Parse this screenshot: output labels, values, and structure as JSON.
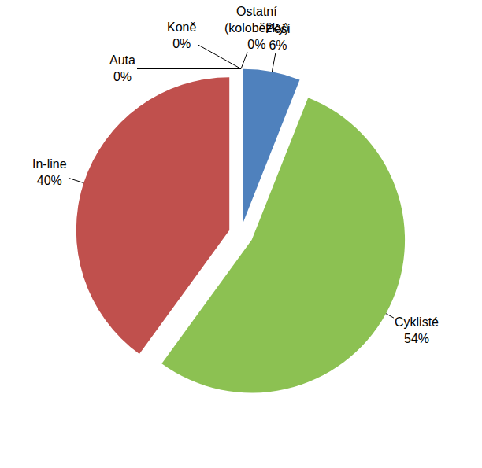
{
  "chart_data": {
    "type": "pie",
    "categories": [
      "Pěší",
      "Cyklisté",
      "In-line",
      "Auta",
      "Koně",
      "Ostatní (koloběžky)"
    ],
    "values": [
      6,
      54,
      40,
      0,
      0,
      0
    ],
    "value_labels": [
      "6%",
      "54%",
      "40%",
      "0%",
      "0%",
      "0%"
    ],
    "colors": [
      "#4f81bd",
      "#8cc152",
      "#c0504d",
      "#8064a2",
      "#1f3864",
      "#f79646"
    ],
    "data_labels": true
  }
}
